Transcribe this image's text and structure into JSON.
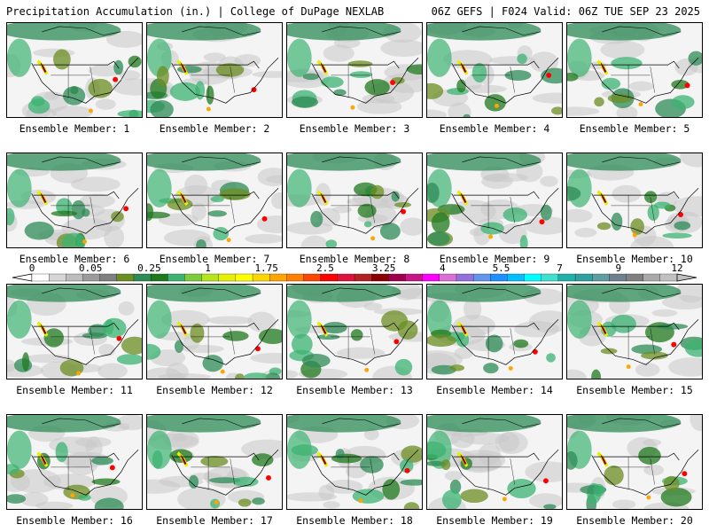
{
  "header": {
    "left_title": "Precipitation Accumulation (in.) | College of DuPage NEXLAB",
    "right_title": "06Z GEFS | F024 Valid: 06Z TUE SEP 23 2025"
  },
  "member_label_prefix": "Ensemble Member: ",
  "members": [
    1,
    2,
    3,
    4,
    5,
    6,
    7,
    8,
    9,
    10,
    11,
    12,
    13,
    14,
    15,
    16,
    17,
    18,
    19,
    20
  ],
  "colorbar": {
    "tick_labels": [
      "0",
      "0.05",
      "0.25",
      "1",
      "1.75",
      "2.5",
      "3.25",
      "4",
      "5.5",
      "7",
      "9",
      "12"
    ],
    "colors": [
      "#ffffff",
      "#d6d6d6",
      "#bdbdbd",
      "#9c9c9c",
      "#7f7f7f",
      "#6b8e23",
      "#2e8b57",
      "#1f7a1f",
      "#3cb371",
      "#7ccd3a",
      "#b5e61d",
      "#e6f000",
      "#ffff00",
      "#ffd700",
      "#ffa500",
      "#ff7f00",
      "#ff4500",
      "#ff0000",
      "#dc143c",
      "#b22222",
      "#8b0000",
      "#a0004b",
      "#c71585",
      "#ff00ff",
      "#da70d6",
      "#9370db",
      "#6495ed",
      "#1e90ff",
      "#00bfff",
      "#00ffff",
      "#40e0d0",
      "#20b2aa",
      "#2f9f9f",
      "#5f9ea0",
      "#708090",
      "#808080",
      "#a9a9a9",
      "#c0c0c0"
    ]
  }
}
